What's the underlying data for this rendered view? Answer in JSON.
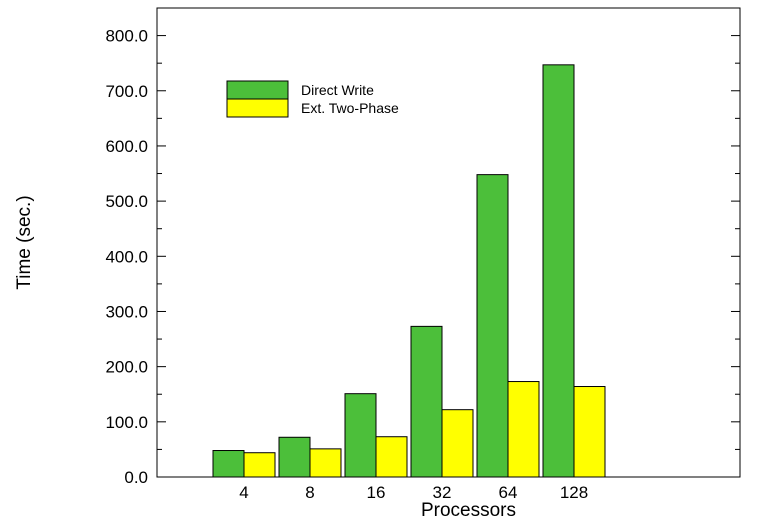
{
  "chart_data": {
    "type": "bar",
    "categories": [
      "4",
      "8",
      "16",
      "32",
      "64",
      "128"
    ],
    "series": [
      {
        "name": "Direct Write",
        "color": "#4cbf3a",
        "values": [
          48,
          72,
          151,
          273,
          548,
          747
        ]
      },
      {
        "name": "Ext. Two-Phase",
        "color": "#ffff00",
        "values": [
          44,
          51,
          73,
          122,
          173,
          164
        ]
      }
    ],
    "title": "",
    "xlabel": "Processors",
    "ylabel": "Time (sec.)",
    "ylim": [
      0,
      850
    ],
    "yticks": [
      0,
      100,
      200,
      300,
      400,
      500,
      600,
      700,
      800
    ],
    "ytick_labels": [
      "0.0",
      "100.0",
      "200.0",
      "300.0",
      "400.0",
      "500.0",
      "600.0",
      "700.0",
      "800.0"
    ],
    "grid": false,
    "legend_position": "top-left"
  }
}
